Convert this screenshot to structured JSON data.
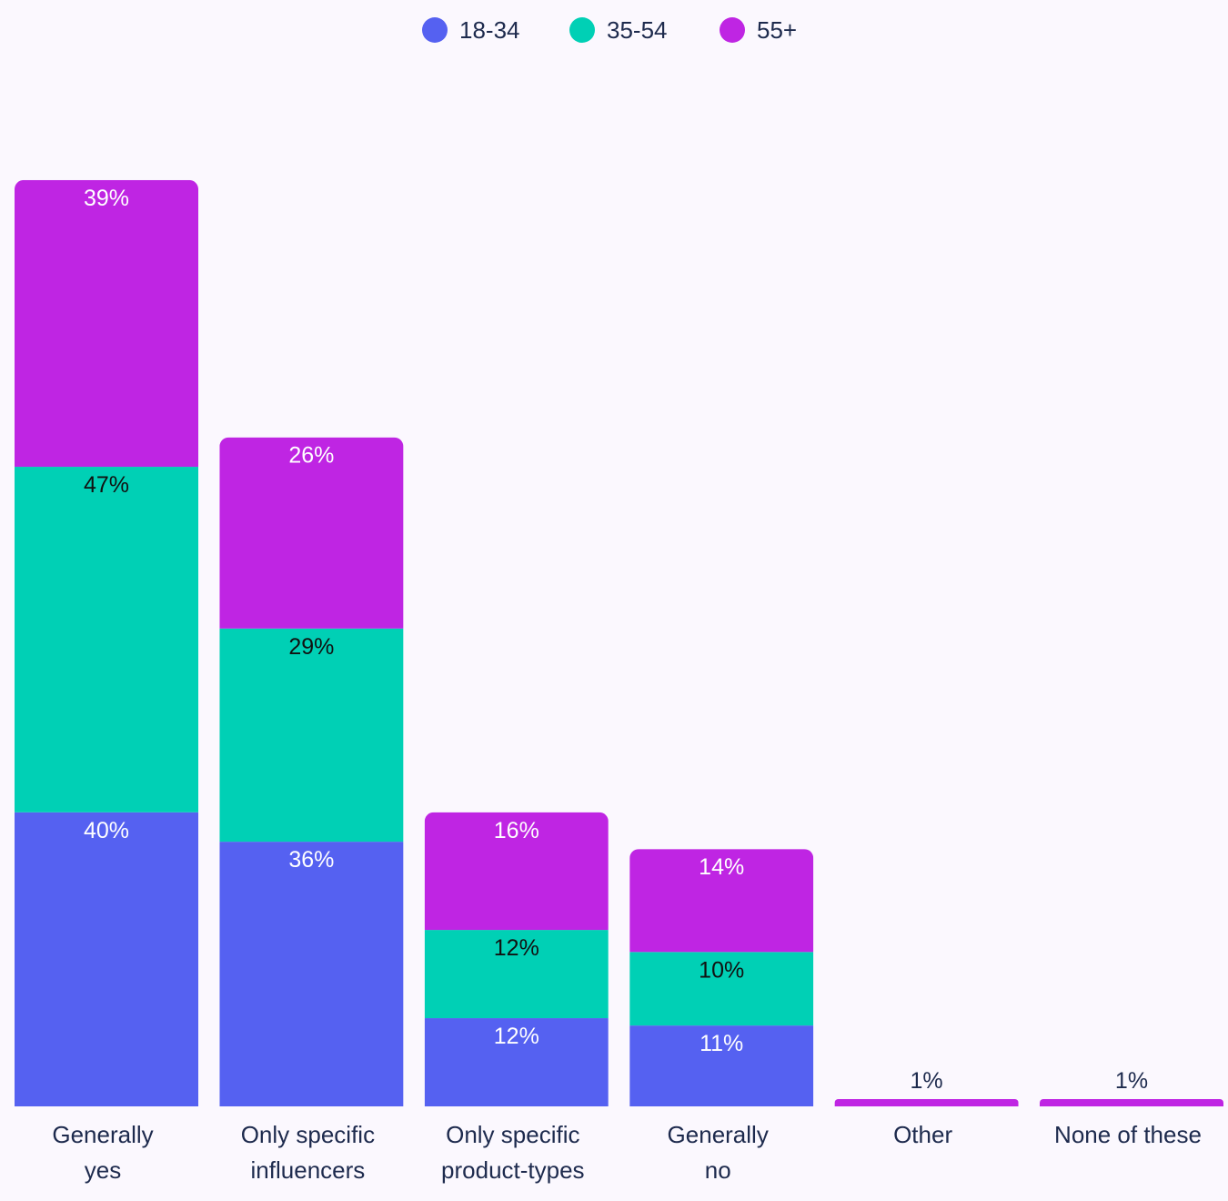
{
  "chart_data": {
    "type": "bar",
    "stacked": true,
    "title": "",
    "xlabel": "",
    "ylabel": "",
    "grid": false,
    "legend_position": "top-center",
    "categories": [
      [
        "Generally",
        "yes"
      ],
      [
        "Only specific",
        "influencers"
      ],
      [
        "Only specific",
        "product-types"
      ],
      [
        "Generally",
        "no"
      ],
      [
        "Other"
      ],
      [
        "None of these"
      ]
    ],
    "series": [
      {
        "name": "18-34",
        "color": "#5561f1",
        "label_color": "#ffffff",
        "values": [
          40,
          36,
          12,
          11,
          0,
          0
        ]
      },
      {
        "name": "35-54",
        "color": "#00d0b5",
        "label_color": "#111111",
        "values": [
          47,
          29,
          12,
          10,
          0,
          0
        ]
      },
      {
        "name": "55+",
        "color": "#bf25e3",
        "label_color": "#ffffff",
        "values": [
          39,
          26,
          16,
          14,
          1,
          1
        ]
      }
    ],
    "outside_label_color": "#1d2a4d"
  }
}
